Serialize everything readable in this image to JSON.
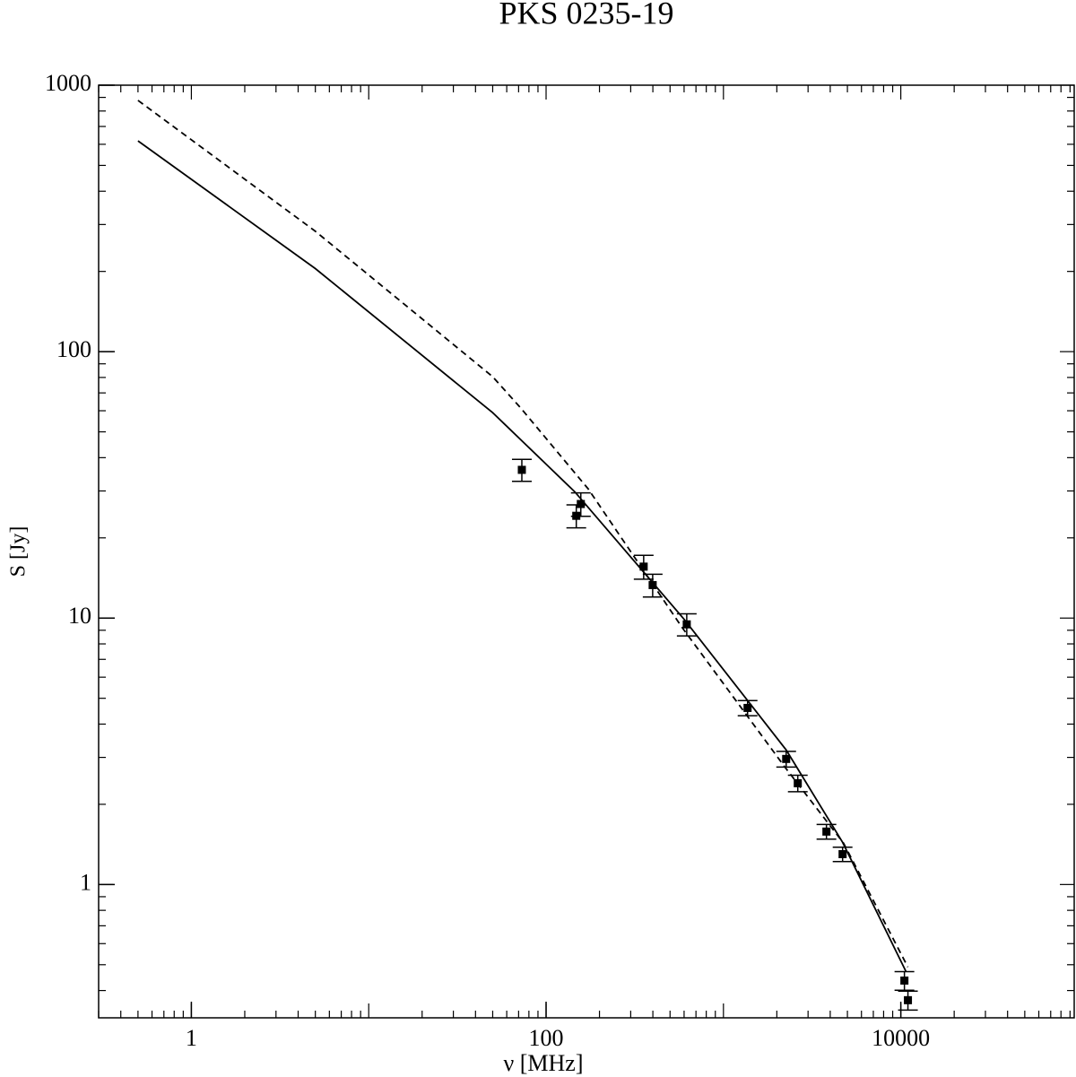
{
  "chart_data": {
    "type": "line",
    "title": "PKS 0235-19",
    "x_label": "ν [MHz]",
    "y_label": "S [Jy]",
    "log_x": true,
    "log_y": true,
    "xlim": [
      0.3,
      95000
    ],
    "xticks": [
      1,
      100,
      10000
    ],
    "ylim": [
      0.316,
      1000
    ],
    "yticks": [
      1,
      10,
      100,
      1000
    ],
    "series": [
      {
        "style": "markers",
        "color": "#000000",
        "x": [
          73,
          148,
          157,
          355,
          399,
          621,
          1368,
          2258,
          2625,
          3808,
          4697,
          10480,
          10970
        ],
        "values": [
          36,
          24.2,
          26.8,
          15.6,
          13.3,
          9.47,
          4.6,
          2.96,
          2.4,
          1.58,
          1.3,
          0.436,
          0.368
        ],
        "errors": [
          3.4,
          2.4,
          2.7,
          1.6,
          1.3,
          0.9,
          0.3,
          0.2,
          0.17,
          0.1,
          0.08,
          0.035,
          0.03
        ]
      },
      {
        "style": "solid",
        "color": "#000000",
        "x": [
          0.5,
          5,
          50,
          145,
          600,
          2258,
          4697,
          10720
        ],
        "values": [
          618,
          205,
          59,
          29.8,
          9.9,
          3.2,
          1.44,
          0.47
        ]
      },
      {
        "style": "dashed",
        "color": "#000000",
        "x": [
          0.5,
          5,
          50,
          72,
          173,
          586,
          2220,
          4756,
          10960
        ],
        "values": [
          877,
          283,
          80.5,
          61.4,
          30.5,
          9.2,
          2.76,
          1.43,
          0.49
        ]
      }
    ]
  }
}
